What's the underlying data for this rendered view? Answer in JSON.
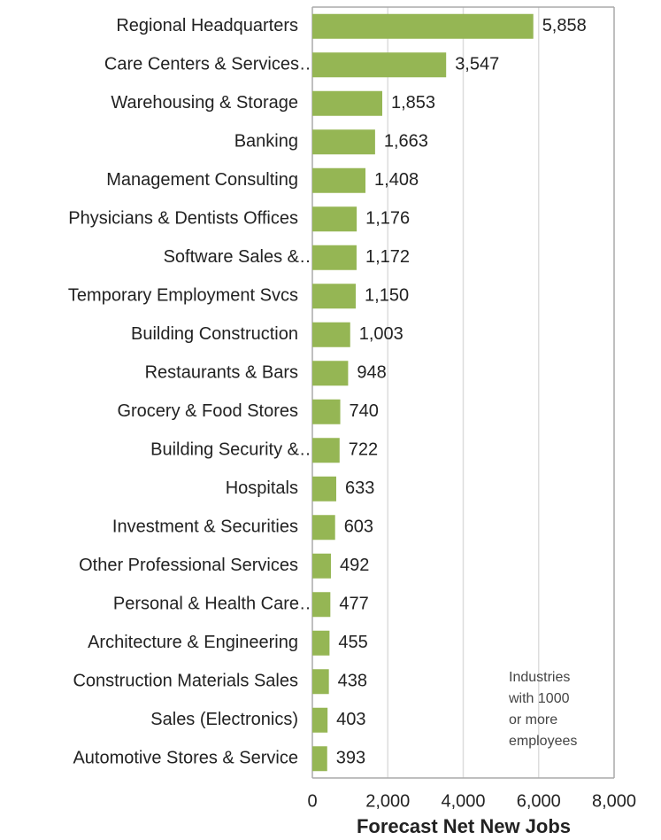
{
  "chart_data": {
    "type": "bar",
    "orientation": "horizontal",
    "categories": [
      "Regional Headquarters",
      "Care Centers & Services…",
      "Warehousing & Storage",
      "Banking",
      "Management Consulting",
      "Physicians & Dentists Offices",
      "Software Sales &…",
      "Temporary Employment Svcs",
      "Building Construction",
      "Restaurants & Bars",
      "Grocery & Food Stores",
      "Building Security &…",
      "Hospitals",
      "Investment & Securities",
      "Other Professional Services",
      "Personal & Health Care…",
      "Architecture & Engineering",
      "Construction Materials Sales",
      "Sales (Electronics)",
      "Automotive Stores & Service"
    ],
    "values": [
      5858,
      3547,
      1853,
      1663,
      1408,
      1176,
      1172,
      1150,
      1003,
      948,
      740,
      722,
      633,
      603,
      492,
      477,
      455,
      438,
      403,
      393
    ],
    "value_labels": [
      "5,858",
      "3,547",
      "1,853",
      "1,663",
      "1,408",
      "1,176",
      "1,172",
      "1,150",
      "1,003",
      "948",
      "740",
      "722",
      "633",
      "603",
      "492",
      "477",
      "455",
      "438",
      "403",
      "393"
    ],
    "color": "#95b654",
    "xlabel": "Forecast Net New Jobs",
    "xlim": [
      0,
      8000
    ],
    "xticks": [
      0,
      {
        "value": 2000,
        "label": "2,000"
      },
      {
        "value": 4000,
        "label": "4,000"
      },
      {
        "value": 6000,
        "label": "6,000"
      },
      {
        "value": 8000,
        "label": "8,000"
      }
    ],
    "grid": true,
    "annotation": [
      "Industries",
      "with 1000",
      "or more",
      "employees"
    ]
  }
}
